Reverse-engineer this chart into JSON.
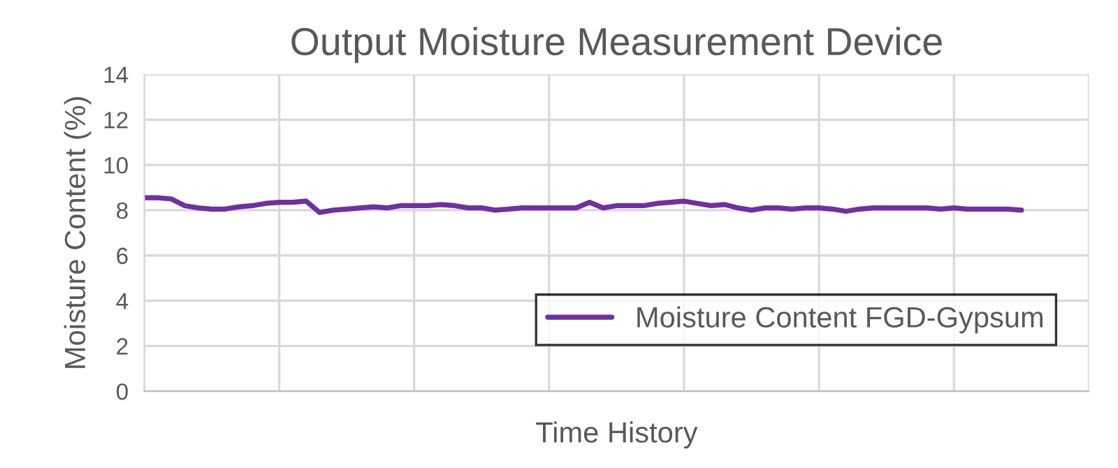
{
  "chart_data": {
    "type": "line",
    "title": "Output Moisture Measurement Device",
    "xlabel": "Time History",
    "ylabel": "Moisture Content (%)",
    "categories": [
      null,
      null,
      null,
      null,
      null,
      null,
      null,
      null,
      null,
      null,
      null,
      null,
      null,
      null,
      null,
      null,
      null,
      null,
      null,
      null,
      null,
      null,
      null,
      null,
      null,
      null,
      null,
      null,
      null,
      null,
      null,
      null,
      null,
      null,
      null,
      null,
      null,
      null,
      null,
      null,
      null,
      null,
      null,
      null,
      null,
      null,
      null,
      null,
      null,
      null,
      null,
      null,
      null,
      null,
      null,
      null,
      null,
      null,
      null,
      null,
      null,
      null,
      null,
      null,
      null,
      null,
      null,
      null,
      null,
      null,
      null
    ],
    "series": [
      {
        "name": "Moisture Content FGD-Gypsum",
        "color": "#7030a0",
        "values": [
          8.55,
          8.55,
          8.5,
          8.2,
          8.1,
          8.05,
          8.05,
          8.15,
          8.2,
          8.3,
          8.35,
          8.35,
          8.4,
          7.9,
          8.0,
          8.05,
          8.1,
          8.15,
          8.1,
          8.2,
          8.2,
          8.2,
          8.25,
          8.2,
          8.1,
          8.1,
          8.0,
          8.05,
          8.1,
          8.1,
          8.1,
          8.1,
          8.1,
          8.35,
          8.1,
          8.2,
          8.2,
          8.2,
          8.3,
          8.35,
          8.4,
          8.3,
          8.2,
          8.25,
          8.1,
          8.0,
          8.1,
          8.1,
          8.05,
          8.1,
          8.1,
          8.05,
          7.95,
          8.05,
          8.1,
          8.1,
          8.1,
          8.1,
          8.1,
          8.05,
          8.1,
          8.05,
          8.05,
          8.05,
          8.05,
          8.0,
          null,
          null,
          null,
          null,
          null
        ]
      }
    ],
    "ylim": [
      0,
      14
    ],
    "yticks": [
      0,
      2,
      4,
      6,
      8,
      10,
      12,
      14
    ],
    "grid": true,
    "legend": "bottom right",
    "marker": "none",
    "line_style": "solid"
  }
}
